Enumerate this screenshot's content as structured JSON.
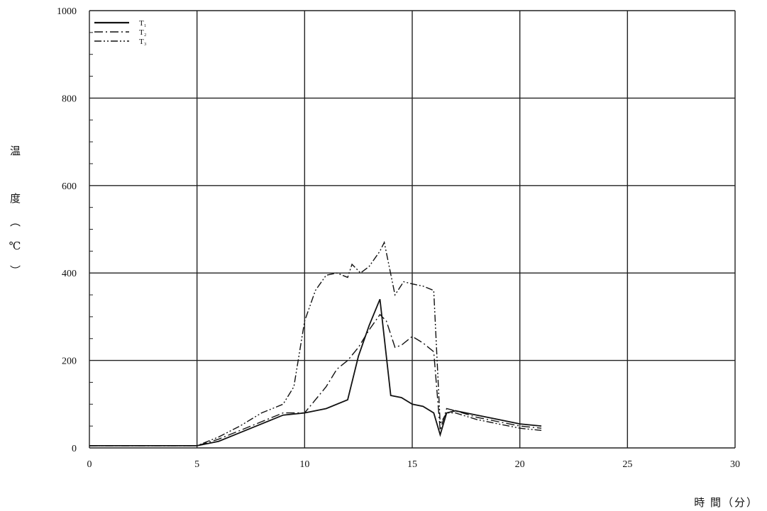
{
  "chart_data": {
    "type": "line",
    "xlabel": "時 間（分）",
    "ylabel": "温 度（℃）",
    "xlim": [
      0,
      30
    ],
    "ylim": [
      0,
      1000
    ],
    "xticks": [
      0,
      5,
      10,
      15,
      20,
      25,
      30
    ],
    "yticks": [
      0,
      200,
      400,
      600,
      800,
      1000
    ],
    "grid": true,
    "legend": "top-left",
    "series": [
      {
        "name": "T₁",
        "style": "solid",
        "x": [
          0,
          5,
          6,
          7,
          8,
          9,
          10,
          11,
          12,
          12.5,
          13,
          13.5,
          14,
          14.5,
          15,
          15.5,
          16,
          16.3,
          16.6,
          17,
          18,
          19,
          20,
          21
        ],
        "y": [
          5,
          5,
          15,
          35,
          55,
          75,
          80,
          90,
          110,
          210,
          280,
          340,
          120,
          115,
          100,
          95,
          80,
          30,
          80,
          85,
          75,
          65,
          55,
          50
        ]
      },
      {
        "name": "T₂",
        "style": "dash-dot",
        "x": [
          0,
          5,
          6,
          7,
          8,
          9,
          10,
          11,
          11.5,
          12,
          12.5,
          13,
          13.5,
          13.8,
          14.2,
          14.5,
          15,
          15.5,
          16,
          16.3,
          16.6,
          17,
          18,
          19,
          20,
          21
        ],
        "y": [
          5,
          5,
          20,
          40,
          60,
          80,
          80,
          140,
          180,
          200,
          230,
          270,
          305,
          290,
          230,
          235,
          255,
          240,
          220,
          40,
          90,
          85,
          70,
          60,
          50,
          45
        ]
      },
      {
        "name": "T₃",
        "style": "dash-dot-dot",
        "x": [
          0,
          5,
          6,
          7,
          8,
          8.5,
          9,
          9.5,
          10,
          10.5,
          11,
          11.5,
          12,
          12.2,
          12.6,
          13,
          13.5,
          13.7,
          14.2,
          14.6,
          15,
          15.5,
          16,
          16.3,
          16.6,
          17,
          18,
          19,
          20,
          21
        ],
        "y": [
          5,
          5,
          25,
          50,
          80,
          90,
          100,
          140,
          290,
          360,
          395,
          400,
          390,
          420,
          400,
          415,
          450,
          470,
          350,
          380,
          375,
          370,
          360,
          55,
          80,
          80,
          65,
          55,
          45,
          40
        ]
      }
    ]
  }
}
